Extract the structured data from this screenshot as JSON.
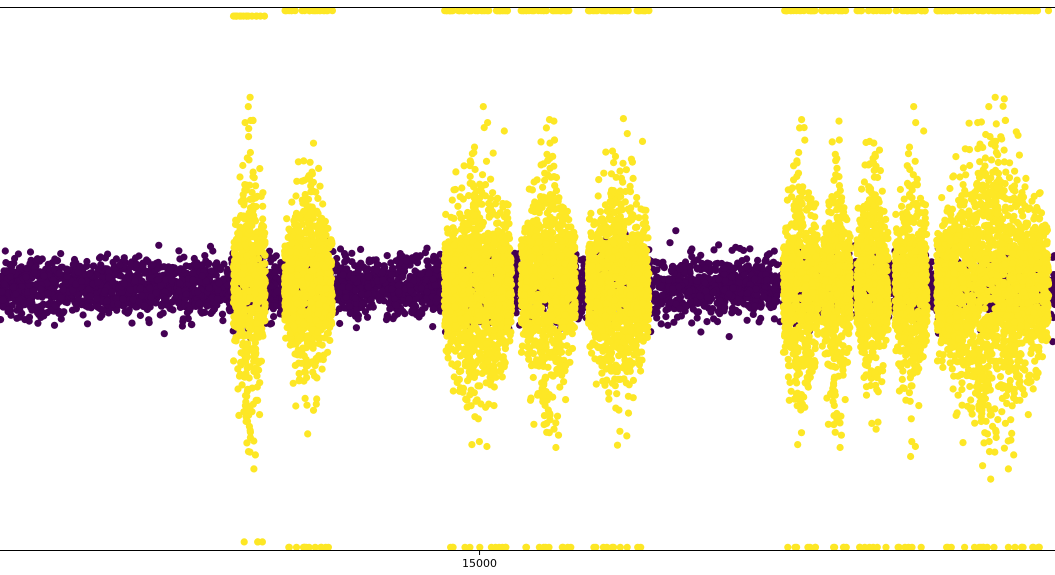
{
  "chart_data": {
    "type": "scatter",
    "title": "",
    "xlabel": "",
    "ylabel": "",
    "x_tick_labels": [
      "15000"
    ],
    "x_ticks": [
      15000
    ],
    "xlim": [
      0,
      33000
    ],
    "ylim": [
      -1.0,
      1.0
    ],
    "grid": false,
    "legend": "none",
    "colors": {
      "class_0": "#440154",
      "class_1": "#fde725"
    },
    "baseline_band": {
      "center": -0.03,
      "half_width": 0.1
    },
    "yellow_segments": [
      {
        "x_start": 7300,
        "x_end": 8300,
        "spread": 0.85,
        "max_abs": 0.97
      },
      {
        "x_start": 8900,
        "x_end": 10400,
        "spread": 0.65,
        "max_abs": 0.99
      },
      {
        "x_start": 13900,
        "x_end": 16000,
        "spread": 0.75,
        "max_abs": 0.99
      },
      {
        "x_start": 16300,
        "x_end": 18000,
        "spread": 0.75,
        "max_abs": 0.99
      },
      {
        "x_start": 18400,
        "x_end": 20300,
        "spread": 0.7,
        "max_abs": 0.99
      },
      {
        "x_start": 24500,
        "x_end": 25600,
        "spread": 0.75,
        "max_abs": 0.99
      },
      {
        "x_start": 25700,
        "x_end": 26600,
        "spread": 0.75,
        "max_abs": 0.99
      },
      {
        "x_start": 26800,
        "x_end": 27800,
        "spread": 0.75,
        "max_abs": 0.99
      },
      {
        "x_start": 28000,
        "x_end": 29000,
        "spread": 0.75,
        "max_abs": 0.99
      },
      {
        "x_start": 29300,
        "x_end": 32800,
        "spread": 0.85,
        "max_abs": 0.99
      }
    ],
    "points": []
  }
}
